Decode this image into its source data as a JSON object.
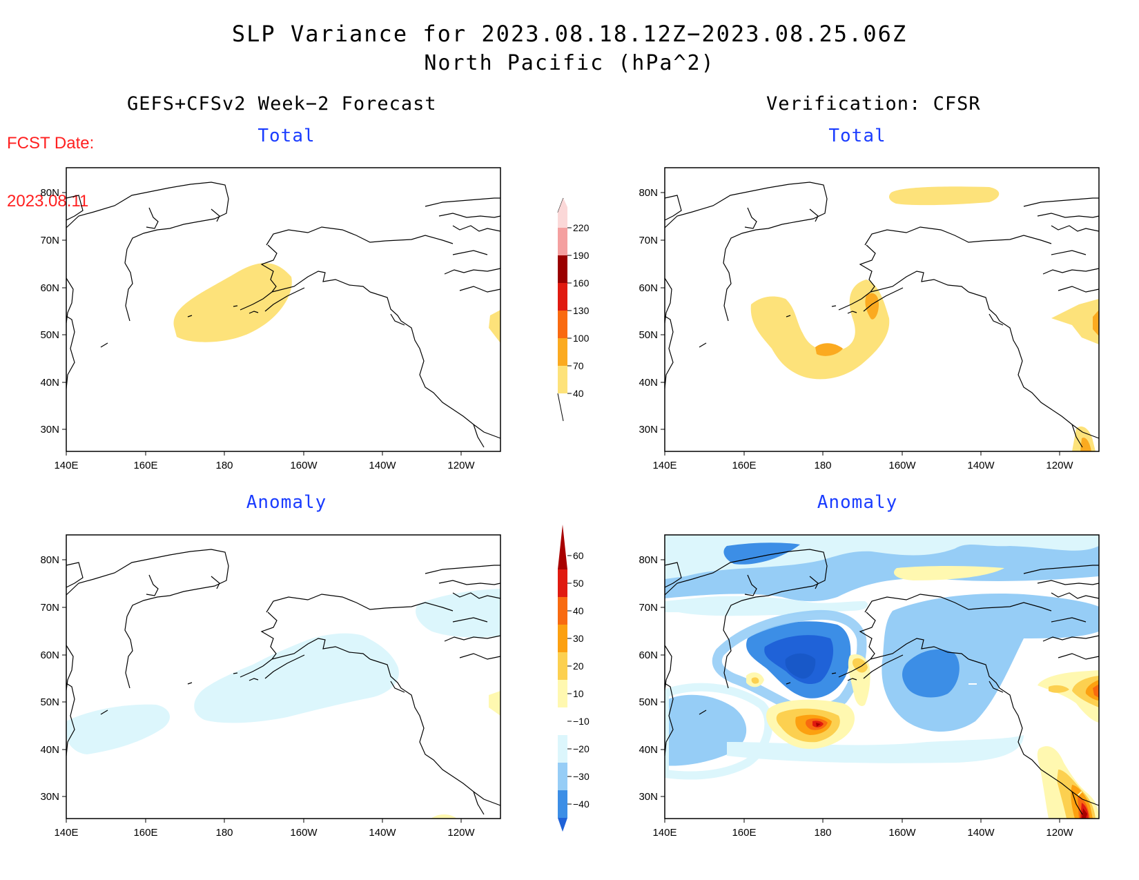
{
  "title": {
    "line1": "SLP Variance for 2023.08.18.12Z−2023.08.25.06Z",
    "line2": "North Pacific (hPa^2)"
  },
  "forecast_date": {
    "label": "FCST Date:",
    "value": "2023.08.11"
  },
  "left_header": "GEFS+CFSv2 Week−2 Forecast",
  "right_header": "Verification: CFSR",
  "panels": {
    "forecast_total": "Total",
    "forecast_anomaly": "Anomaly",
    "verification_total": "Total",
    "verification_anomaly": "Anomaly"
  },
  "axes": {
    "lon_labels": [
      "140E",
      "160E",
      "180",
      "160W",
      "140W",
      "120W"
    ],
    "lat_labels": [
      "80N",
      "70N",
      "60N",
      "50N",
      "40N",
      "30N"
    ],
    "lon_range": [
      "140E",
      "110W"
    ],
    "lat_range": [
      "25N",
      "85N"
    ]
  },
  "colorbars": {
    "total": {
      "levels": [
        "40",
        "70",
        "100",
        "130",
        "160",
        "190",
        "220"
      ],
      "colors": [
        "#fde27a",
        "#fbaa20",
        "#f96a10",
        "#e01a10",
        "#9a0000",
        "#f4a0a0",
        "#fbd8d8"
      ]
    },
    "anomaly": {
      "levels": [
        "−40",
        "−30",
        "−20",
        "−10",
        "10",
        "20",
        "30",
        "40",
        "50",
        "60"
      ],
      "colors": [
        "#1f62d8",
        "#3c8ee6",
        "#96cdf6",
        "#dcf6fc",
        "#ffffff",
        "#fff8b0",
        "#fcd050",
        "#fca010",
        "#f86a10",
        "#e01a10",
        "#a80000"
      ]
    }
  },
  "colors": {
    "forecast_date": "#ff2020",
    "panel_title": "#1a3cff"
  }
}
